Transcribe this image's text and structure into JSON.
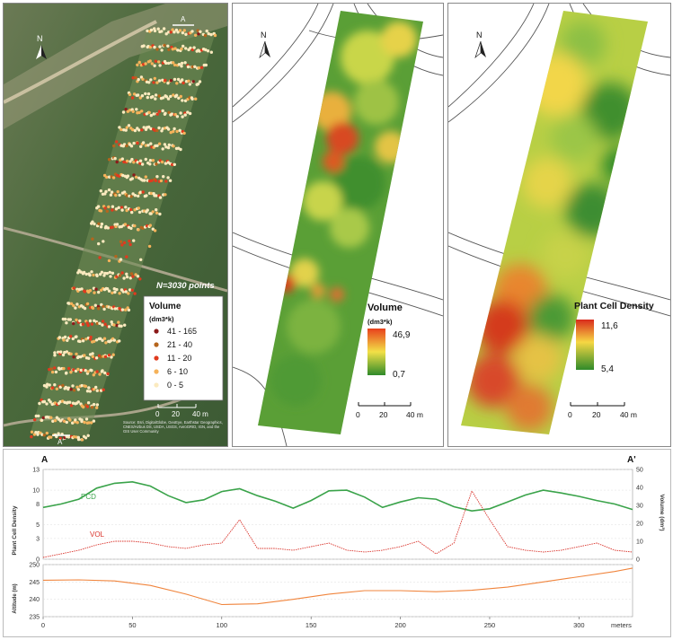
{
  "panel1": {
    "north": "N",
    "section_start": "A",
    "section_end": "A'",
    "count_label": "N=3030 points",
    "legend_title": "Volume",
    "legend_unit": "(dm3*k)",
    "classes": [
      {
        "label": "41 - 165",
        "color": "#8b1a1a"
      },
      {
        "label": "21 - 40",
        "color": "#b5651d"
      },
      {
        "label": "11 - 20",
        "color": "#e03a1e"
      },
      {
        "label": "6 - 10",
        "color": "#f5b25a"
      },
      {
        "label": "0 - 5",
        "color": "#fbeabf"
      }
    ],
    "scale_ticks": [
      "0",
      "20",
      "40 m"
    ],
    "attribution": "Source: Esri, DigitalGlobe, GeoEye, Earthstar Geographics, CNES/Airbus DS, USDA, USGS, AeroGRID, IGN, and the GIS User Community"
  },
  "panel2": {
    "north": "N",
    "legend_title": "Volume",
    "legend_unit": "(dm3*k)",
    "max": "46,9",
    "min": "0,7",
    "scale_ticks": [
      "0",
      "20",
      "40 m"
    ]
  },
  "panel3": {
    "north": "N",
    "legend_title": "Plant Cell Density",
    "max": "11,6",
    "min": "5,4",
    "scale_ticks": [
      "0",
      "20",
      "40 m"
    ]
  },
  "profile": {
    "start_label": "A",
    "end_label": "A'",
    "pcd_label": "PCD",
    "vol_label": "VOL",
    "left_axis_title": "Plant Cell Density",
    "right_axis_title": "Volume (dm³)",
    "alt_axis_title": "Altitude (m)",
    "x_unit": "meters",
    "colors": {
      "pcd": "#3aa34a",
      "vol": "#d9322a",
      "alt": "#f0843c"
    }
  },
  "chart_data": [
    {
      "type": "line",
      "title": "",
      "x": [
        0,
        10,
        20,
        30,
        40,
        50,
        60,
        70,
        80,
        90,
        100,
        110,
        120,
        130,
        140,
        150,
        160,
        170,
        180,
        190,
        200,
        210,
        220,
        230,
        240,
        250,
        260,
        270,
        280,
        290,
        300,
        310,
        320,
        330
      ],
      "series": [
        {
          "name": "PCD",
          "axis": "left",
          "values": [
            7.5,
            8.0,
            8.7,
            10.3,
            11.0,
            11.2,
            10.6,
            9.2,
            8.2,
            8.6,
            9.8,
            10.2,
            9.2,
            8.4,
            7.4,
            8.5,
            9.9,
            10.0,
            9.0,
            7.5,
            8.3,
            8.9,
            8.7,
            7.6,
            7.0,
            7.3,
            8.3,
            9.3,
            10.0,
            9.6,
            9.1,
            8.5,
            8.0,
            7.2
          ]
        },
        {
          "name": "VOL",
          "axis": "right",
          "values": [
            1,
            3,
            5,
            8,
            10,
            10,
            9,
            7,
            6,
            8,
            9,
            22,
            6,
            6,
            5,
            7,
            9,
            5,
            4,
            5,
            7,
            10,
            3,
            9,
            38,
            22,
            7,
            5,
            4,
            5,
            7,
            9,
            5,
            4
          ]
        }
      ],
      "xlabel": "meters",
      "ylabel": "Plant Cell Density",
      "y2label": "Volume (dm³)",
      "xlim": [
        0,
        330
      ],
      "ylim": [
        0,
        13
      ],
      "y2lim": [
        0,
        50
      ],
      "xticks": [
        "0",
        "50",
        "100",
        "150",
        "200",
        "250",
        "300"
      ],
      "yticks": [
        "0",
        "3",
        "5",
        "8",
        "10",
        "13"
      ],
      "y2ticks": [
        "0",
        "10",
        "20",
        "30",
        "40",
        "50"
      ],
      "grid": true
    },
    {
      "type": "line",
      "title": "",
      "x": [
        0,
        20,
        40,
        60,
        80,
        100,
        120,
        140,
        160,
        180,
        200,
        220,
        240,
        260,
        280,
        300,
        320,
        330
      ],
      "series": [
        {
          "name": "Altitude",
          "values": [
            245.5,
            245.6,
            245.3,
            244.0,
            241.5,
            238.5,
            238.7,
            240.0,
            241.5,
            242.5,
            242.5,
            242.2,
            242.6,
            243.5,
            245.0,
            246.5,
            248.0,
            249.0
          ]
        }
      ],
      "xlabel": "meters",
      "ylabel": "Altitude (m)",
      "xlim": [
        0,
        330
      ],
      "ylim": [
        235,
        250
      ],
      "yticks": [
        "235",
        "240",
        "245",
        "250"
      ],
      "grid": true
    }
  ]
}
